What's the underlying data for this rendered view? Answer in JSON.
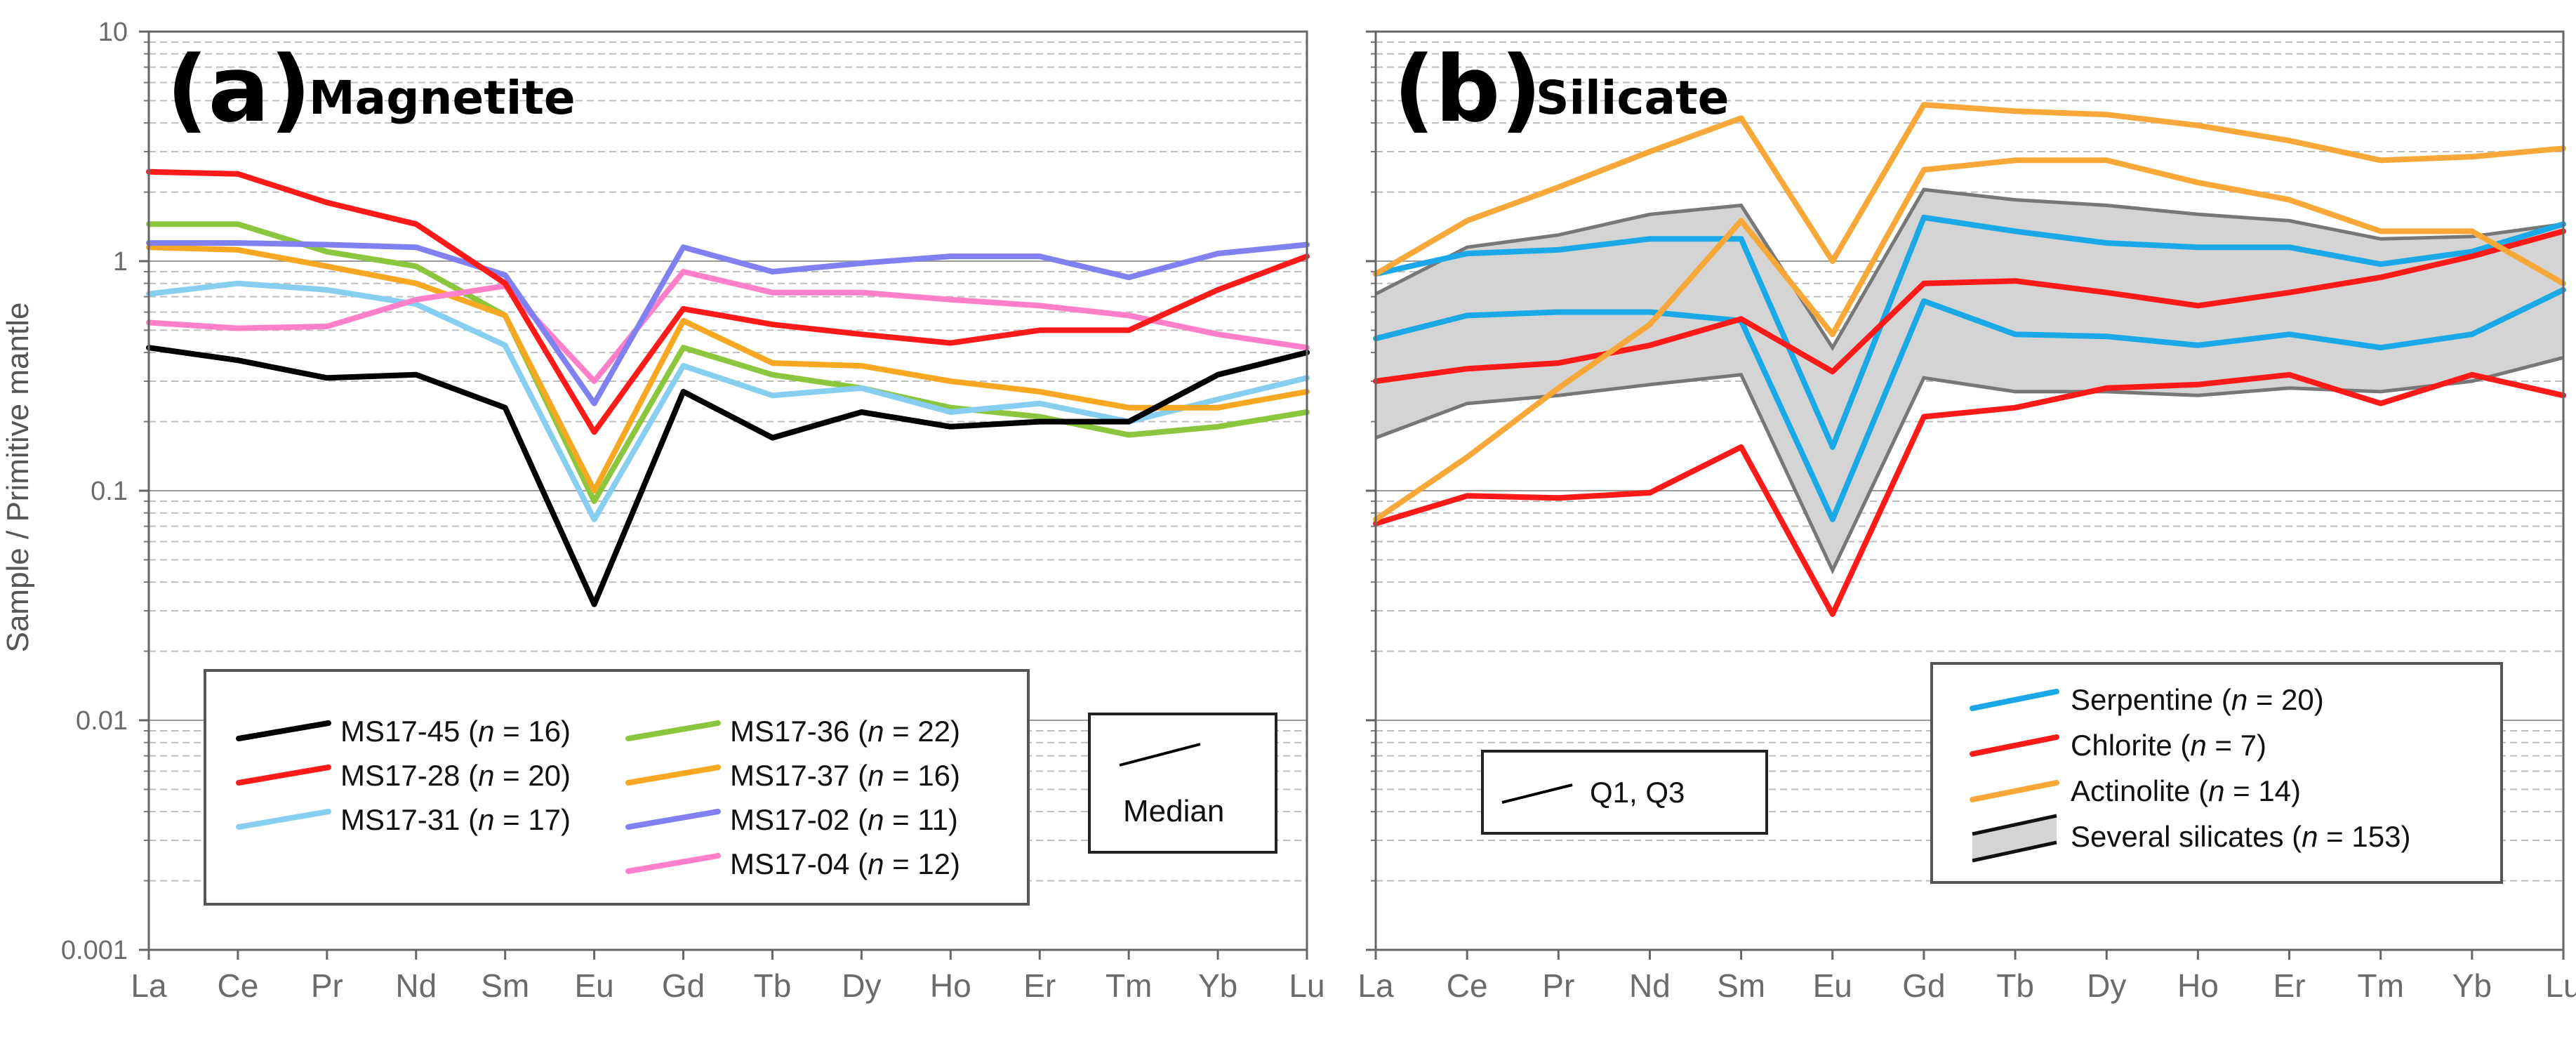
{
  "figure": {
    "y_axis_label": "Sample / Primitive mantle"
  },
  "chart_data": [
    {
      "type": "line",
      "panel_letter": "(a)",
      "title": "Magnetite",
      "ylabel": "Sample / Primitive mantle",
      "yscale": "log",
      "ylim": [
        0.001,
        10
      ],
      "y_ticks": [
        "10",
        "1",
        "0.1",
        "0.01",
        "0.001"
      ],
      "grid": true,
      "categories": [
        "La",
        "Ce",
        "Pr",
        "Nd",
        "Sm",
        "Eu",
        "Gd",
        "Tb",
        "Dy",
        "Ho",
        "Er",
        "Tm",
        "Yb",
        "Lu"
      ],
      "series": [
        {
          "name": "MS17-45",
          "n": "16",
          "color": "#000000",
          "values": [
            0.42,
            0.37,
            0.31,
            0.32,
            0.23,
            0.032,
            0.27,
            0.17,
            0.22,
            0.19,
            0.2,
            0.2,
            0.32,
            0.4
          ]
        },
        {
          "name": "MS17-28",
          "n": "20",
          "color": "#ff1a1a",
          "values": [
            2.45,
            2.4,
            1.8,
            1.45,
            0.8,
            0.18,
            0.62,
            0.53,
            0.48,
            0.44,
            0.5,
            0.5,
            0.75,
            1.05
          ]
        },
        {
          "name": "MS17-31",
          "n": "17",
          "color": "#87cef0",
          "values": [
            0.72,
            0.8,
            0.75,
            0.65,
            0.43,
            0.075,
            0.35,
            0.26,
            0.28,
            0.22,
            0.24,
            0.2,
            0.25,
            0.31
          ]
        },
        {
          "name": "MS17-36",
          "n": "22",
          "color": "#8cc63f",
          "values": [
            1.45,
            1.45,
            1.1,
            0.95,
            0.58,
            0.09,
            0.42,
            0.32,
            0.28,
            0.23,
            0.21,
            0.175,
            0.19,
            0.22
          ]
        },
        {
          "name": "MS17-37",
          "n": "16",
          "color": "#f7a823",
          "values": [
            1.15,
            1.12,
            0.95,
            0.8,
            0.58,
            0.1,
            0.55,
            0.36,
            0.35,
            0.3,
            0.27,
            0.23,
            0.23,
            0.27
          ]
        },
        {
          "name": "MS17-02",
          "n": "11",
          "color": "#8080f0",
          "values": [
            1.2,
            1.2,
            1.18,
            1.15,
            0.87,
            0.24,
            1.15,
            0.9,
            0.98,
            1.05,
            1.05,
            0.85,
            1.08,
            1.18
          ]
        },
        {
          "name": "MS17-04",
          "n": "12",
          "color": "#ff80c8",
          "values": [
            0.54,
            0.51,
            0.52,
            0.68,
            0.78,
            0.3,
            0.9,
            0.73,
            0.73,
            0.68,
            0.64,
            0.58,
            0.48,
            0.42
          ]
        }
      ],
      "legend": {
        "placement": "bottom-left",
        "n_prefix": "n",
        "median_label": "Median"
      }
    },
    {
      "type": "line",
      "panel_letter": "(b)",
      "title": "Silicate",
      "ylabel": "Sample / Primitive mantle",
      "yscale": "log",
      "ylim": [
        0.001,
        10
      ],
      "grid": true,
      "categories": [
        "La",
        "Ce",
        "Pr",
        "Nd",
        "Sm",
        "Eu",
        "Gd",
        "Tb",
        "Dy",
        "Ho",
        "Er",
        "Tm",
        "Yb",
        "Lu"
      ],
      "band": {
        "name": "Several silicates",
        "n": "153",
        "fill": "#d4d4d4",
        "edge": "#777777",
        "upper": [
          0.72,
          1.15,
          1.3,
          1.6,
          1.75,
          0.42,
          2.05,
          1.85,
          1.75,
          1.6,
          1.5,
          1.25,
          1.28,
          1.45
        ],
        "lower": [
          0.17,
          0.24,
          0.26,
          0.29,
          0.32,
          0.045,
          0.31,
          0.27,
          0.27,
          0.26,
          0.28,
          0.27,
          0.3,
          0.38
        ]
      },
      "series": [
        {
          "name": "Serpentine",
          "n": "20",
          "color": "#1aa9e6",
          "values": [
            0.46,
            0.58,
            0.6,
            0.6,
            0.55,
            0.075,
            0.67,
            0.48,
            0.47,
            0.43,
            0.48,
            0.42,
            0.48,
            0.75
          ]
        },
        {
          "name": "Serpentine",
          "n": "20",
          "color": "#1aa9e6",
          "values": [
            0.88,
            1.08,
            1.12,
            1.25,
            1.25,
            0.155,
            1.55,
            1.35,
            1.2,
            1.15,
            1.15,
            0.97,
            1.1,
            1.45
          ]
        },
        {
          "name": "Chlorite",
          "n": "7",
          "color": "#ff1a1a",
          "values": [
            0.072,
            0.095,
            0.093,
            0.098,
            0.155,
            0.029,
            0.21,
            0.23,
            0.28,
            0.29,
            0.32,
            0.24,
            0.32,
            0.26
          ]
        },
        {
          "name": "Chlorite",
          "n": "7",
          "color": "#ff1a1a",
          "values": [
            0.3,
            0.34,
            0.36,
            0.43,
            0.56,
            0.33,
            0.8,
            0.82,
            0.73,
            0.64,
            0.73,
            0.85,
            1.05,
            1.35
          ]
        },
        {
          "name": "Actinolite",
          "n": "14",
          "color": "#f7a838",
          "values": [
            0.075,
            0.14,
            0.28,
            0.53,
            1.5,
            0.48,
            2.5,
            2.75,
            2.75,
            2.2,
            1.85,
            1.35,
            1.35,
            0.8
          ]
        },
        {
          "name": "Actinolite",
          "n": "14",
          "color": "#f7a838",
          "values": [
            0.88,
            1.5,
            2.1,
            3.0,
            4.2,
            1.0,
            4.8,
            4.5,
            4.35,
            3.9,
            3.35,
            2.75,
            2.85,
            3.1
          ]
        }
      ],
      "legend": {
        "placement": "bottom-right",
        "n_prefix": "n",
        "quartile_label": "Q1, Q3"
      }
    }
  ]
}
